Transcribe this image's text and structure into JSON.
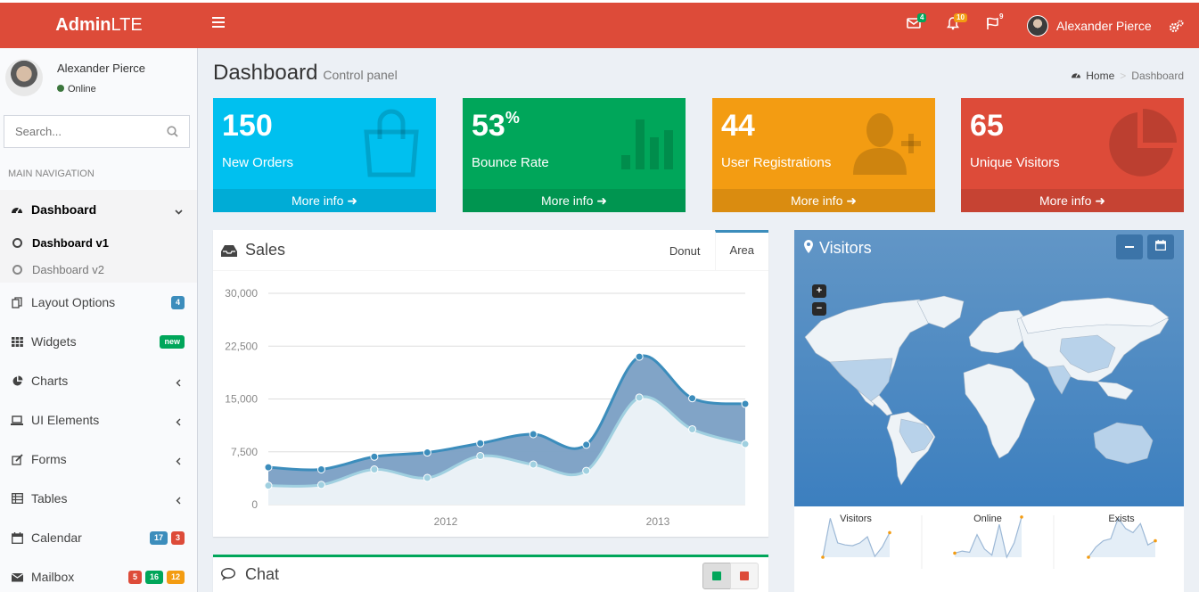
{
  "header": {
    "logo_bold": "Admin",
    "logo_rest": "LTE",
    "messages_count": "4",
    "notifications_count": "10",
    "tasks_count": "9",
    "user_name": "Alexander Pierce"
  },
  "sidebar": {
    "user_name": "Alexander Pierce",
    "status": "Online",
    "search_placeholder": "Search...",
    "nav_header": "MAIN NAVIGATION",
    "items": [
      {
        "label": "Dashboard",
        "icon": "dashboard-icon"
      },
      {
        "label": "Layout Options",
        "badge": "4"
      },
      {
        "label": "Widgets",
        "badge": "new"
      },
      {
        "label": "Charts"
      },
      {
        "label": "UI Elements"
      },
      {
        "label": "Forms"
      },
      {
        "label": "Tables"
      },
      {
        "label": "Calendar",
        "badges": [
          "17",
          "3"
        ]
      },
      {
        "label": "Mailbox",
        "badges": [
          "5",
          "16",
          "12"
        ]
      }
    ],
    "sub_items": [
      {
        "label": "Dashboard v1"
      },
      {
        "label": "Dashboard v2"
      }
    ]
  },
  "content": {
    "title": "Dashboard",
    "subtitle": "Control panel",
    "breadcrumb_home": "Home",
    "breadcrumb_current": "Dashboard"
  },
  "stats": [
    {
      "number": "150",
      "label": "New Orders",
      "footer": "More info",
      "color": "#00c0ef"
    },
    {
      "number": "53",
      "sup": "%",
      "label": "Bounce Rate",
      "footer": "More info",
      "color": "#00a65a"
    },
    {
      "number": "44",
      "label": "User Registrations",
      "footer": "More info",
      "color": "#f39c12"
    },
    {
      "number": "65",
      "label": "Unique Visitors",
      "footer": "More info",
      "color": "#dd4b39"
    }
  ],
  "sales": {
    "title": "Sales",
    "tab_donut": "Donut",
    "tab_area": "Area"
  },
  "chart_data": {
    "type": "area",
    "title": "",
    "y_ticks": [
      "30,000",
      "22,500",
      "15,000",
      "7,500",
      "0"
    ],
    "x_ticks": [
      "2012",
      "2013"
    ],
    "ylim": [
      0,
      30000
    ],
    "x": [
      0,
      1,
      2,
      3,
      4,
      5,
      6,
      7,
      8,
      9
    ],
    "series": [
      {
        "values": [
          5300,
          5000,
          6800,
          7400,
          8700,
          10000,
          8500,
          21000,
          15100,
          14300
        ],
        "color": "#3c8dbc"
      },
      {
        "values": [
          2700,
          2800,
          5000,
          3800,
          6900,
          5700,
          4800,
          15200,
          10700,
          8600
        ],
        "color": "#a0d0e0"
      }
    ]
  },
  "chat": {
    "title": "Chat"
  },
  "visitors": {
    "title": "Visitors",
    "zoom_in": "+",
    "zoom_out": "−",
    "sparklines": [
      {
        "label": "Visitors"
      },
      {
        "label": "Online"
      },
      {
        "label": "Exists"
      }
    ]
  }
}
